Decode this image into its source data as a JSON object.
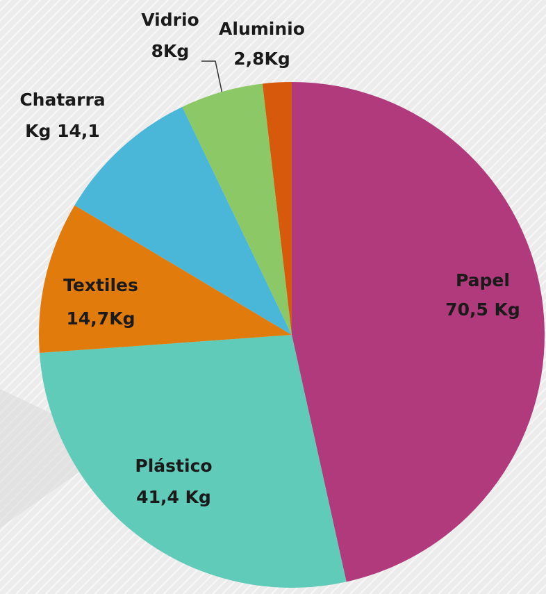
{
  "chart_data": {
    "type": "pie",
    "categories": [
      "Papel",
      "Plástico",
      "Textiles",
      "Chatarra",
      "Vidrio",
      "Aluminio"
    ],
    "values": [
      70.5,
      41.4,
      14.7,
      14.1,
      8,
      2.8
    ],
    "value_labels": [
      "70,5  Kg",
      "41,4 Kg",
      "14,7Kg",
      "Kg 14,1",
      "8Kg",
      "2,8Kg"
    ],
    "colors": [
      "#b03a7c",
      "#5fcbb8",
      "#e07b0c",
      "#4ab6d8",
      "#8cc865",
      "#d75a0c"
    ]
  }
}
